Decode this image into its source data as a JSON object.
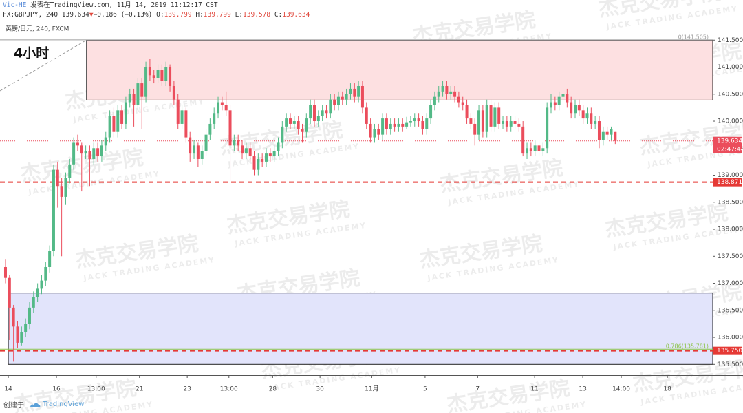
{
  "header": {
    "author": "Vic-HE",
    "published": "发表在TradingView.com, 11月 14, 2019 11:12:17 CST",
    "symbol": "FX:GBPJPY, 240 139.634",
    "arrow": "▼",
    "change": "−0.186 (−0.13%)",
    "ohlc_labels": [
      "O:",
      "H:",
      "L:",
      "C:"
    ],
    "ohlc_values": [
      "139.799",
      "139.799",
      "139.578",
      "139.634"
    ]
  },
  "chart_data": {
    "type": "candlestick",
    "pane_label": "英镑/日元, 240, FXCM",
    "annotation": "4小时",
    "up_color": "#53b987",
    "down_color": "#eb4d5c",
    "ohlc": [
      [
        137.3,
        137.45,
        137.0,
        137.1
      ],
      [
        137.1,
        137.15,
        135.95,
        136.55
      ],
      [
        136.55,
        136.6,
        135.55,
        136.2
      ],
      [
        136.2,
        136.3,
        135.8,
        135.9
      ],
      [
        135.9,
        136.2,
        135.85,
        136.1
      ],
      [
        136.1,
        136.35,
        136.0,
        136.25
      ],
      [
        136.25,
        136.65,
        136.15,
        136.55
      ],
      [
        136.55,
        136.85,
        136.45,
        136.75
      ],
      [
        136.75,
        137.0,
        136.65,
        136.9
      ],
      [
        136.9,
        137.15,
        136.8,
        137.05
      ],
      [
        137.05,
        137.4,
        136.95,
        137.3
      ],
      [
        137.3,
        137.7,
        137.2,
        137.6
      ],
      [
        137.6,
        139.2,
        137.5,
        139.1
      ],
      [
        139.1,
        139.25,
        138.4,
        138.8
      ],
      [
        138.8,
        138.95,
        137.5,
        138.6
      ],
      [
        138.6,
        139.05,
        138.45,
        138.95
      ],
      [
        138.95,
        139.3,
        138.85,
        139.2
      ],
      [
        139.2,
        139.7,
        139.1,
        139.6
      ],
      [
        139.6,
        139.75,
        139.45,
        139.55
      ],
      [
        139.55,
        139.6,
        138.7,
        139.4
      ],
      [
        139.4,
        139.55,
        139.3,
        139.45
      ],
      [
        139.45,
        139.55,
        138.8,
        139.3
      ],
      [
        139.3,
        139.6,
        139.2,
        139.5
      ],
      [
        139.5,
        139.6,
        139.25,
        139.35
      ],
      [
        139.35,
        139.65,
        139.25,
        139.55
      ],
      [
        139.55,
        139.8,
        139.45,
        139.7
      ],
      [
        139.7,
        140.2,
        139.6,
        140.1
      ],
      [
        140.1,
        140.25,
        139.7,
        139.8
      ],
      [
        139.8,
        140.3,
        139.7,
        140.2
      ],
      [
        140.2,
        140.3,
        139.85,
        139.95
      ],
      [
        139.95,
        140.45,
        139.85,
        140.35
      ],
      [
        140.35,
        140.6,
        140.25,
        140.5
      ],
      [
        140.5,
        140.6,
        139.9,
        140.3
      ],
      [
        140.3,
        140.8,
        140.2,
        140.7
      ],
      [
        140.7,
        140.8,
        139.85,
        140.45
      ],
      [
        140.45,
        141.1,
        140.35,
        141.0
      ],
      [
        141.0,
        141.15,
        140.75,
        140.85
      ],
      [
        140.85,
        140.95,
        140.7,
        140.8
      ],
      [
        140.8,
        141.05,
        140.7,
        140.95
      ],
      [
        140.95,
        141.05,
        140.65,
        140.75
      ],
      [
        140.75,
        141.1,
        140.65,
        141.0
      ],
      [
        141.0,
        141.05,
        140.55,
        140.65
      ],
      [
        140.65,
        140.75,
        140.3,
        140.4
      ],
      [
        140.4,
        140.5,
        139.85,
        139.95
      ],
      [
        139.95,
        140.3,
        139.85,
        140.2
      ],
      [
        140.2,
        140.25,
        139.6,
        139.7
      ],
      [
        139.7,
        139.8,
        139.25,
        139.4
      ],
      [
        139.4,
        139.65,
        139.3,
        139.55
      ],
      [
        139.55,
        139.6,
        139.15,
        139.3
      ],
      [
        139.3,
        139.55,
        139.2,
        139.45
      ],
      [
        139.45,
        139.85,
        139.35,
        139.75
      ],
      [
        139.75,
        140.05,
        139.65,
        139.95
      ],
      [
        139.95,
        140.25,
        139.85,
        140.15
      ],
      [
        140.15,
        140.45,
        140.05,
        140.35
      ],
      [
        140.35,
        140.45,
        140.2,
        140.3
      ],
      [
        140.3,
        140.55,
        140.1,
        140.2
      ],
      [
        140.2,
        140.3,
        138.9,
        139.55
      ],
      [
        139.55,
        139.75,
        139.45,
        139.65
      ],
      [
        139.65,
        139.75,
        139.45,
        139.55
      ],
      [
        139.55,
        139.65,
        139.3,
        139.4
      ],
      [
        139.4,
        139.6,
        139.3,
        139.5
      ],
      [
        139.5,
        139.6,
        139.25,
        139.35
      ],
      [
        139.35,
        139.45,
        139.0,
        139.1
      ],
      [
        139.1,
        139.4,
        139.0,
        139.3
      ],
      [
        139.3,
        139.4,
        139.15,
        139.25
      ],
      [
        139.25,
        139.5,
        139.15,
        139.4
      ],
      [
        139.4,
        139.5,
        139.25,
        139.35
      ],
      [
        139.35,
        139.55,
        139.25,
        139.45
      ],
      [
        139.45,
        139.7,
        139.35,
        139.6
      ],
      [
        139.6,
        140.0,
        139.5,
        139.9
      ],
      [
        139.9,
        140.15,
        139.8,
        140.05
      ],
      [
        140.05,
        140.15,
        139.85,
        139.95
      ],
      [
        139.95,
        140.1,
        139.85,
        140.0
      ],
      [
        140.0,
        140.1,
        139.75,
        139.85
      ],
      [
        139.85,
        139.95,
        139.6,
        139.8
      ],
      [
        139.8,
        140.15,
        139.7,
        140.05
      ],
      [
        140.05,
        140.4,
        139.95,
        140.3
      ],
      [
        140.3,
        140.4,
        139.9,
        140.0
      ],
      [
        140.0,
        140.2,
        139.9,
        140.1
      ],
      [
        140.1,
        140.3,
        140.0,
        140.2
      ],
      [
        140.2,
        140.3,
        140.05,
        140.15
      ],
      [
        140.15,
        140.5,
        140.05,
        140.4
      ],
      [
        140.4,
        140.5,
        140.2,
        140.3
      ],
      [
        140.3,
        140.55,
        140.2,
        140.45
      ],
      [
        140.45,
        140.55,
        140.3,
        140.4
      ],
      [
        140.4,
        140.6,
        140.3,
        140.5
      ],
      [
        140.5,
        140.7,
        140.4,
        140.6
      ],
      [
        140.6,
        140.7,
        140.35,
        140.45
      ],
      [
        140.45,
        140.75,
        140.35,
        140.65
      ],
      [
        140.65,
        140.75,
        140.15,
        140.25
      ],
      [
        140.25,
        140.35,
        139.85,
        139.95
      ],
      [
        139.95,
        140.05,
        139.6,
        139.7
      ],
      [
        139.7,
        139.95,
        139.6,
        139.85
      ],
      [
        139.85,
        139.95,
        139.65,
        139.75
      ],
      [
        139.75,
        140.15,
        139.65,
        140.05
      ],
      [
        140.05,
        140.15,
        139.75,
        139.85
      ],
      [
        139.85,
        140.05,
        139.75,
        139.95
      ],
      [
        139.95,
        140.05,
        139.8,
        139.9
      ],
      [
        139.9,
        140.05,
        139.8,
        139.95
      ],
      [
        139.95,
        140.05,
        139.8,
        139.9
      ],
      [
        139.9,
        140.08,
        139.85,
        139.98
      ],
      [
        139.98,
        140.1,
        139.9,
        140.0
      ],
      [
        140.0,
        140.15,
        139.9,
        140.05
      ],
      [
        140.05,
        140.15,
        139.9,
        140.0
      ],
      [
        140.0,
        140.1,
        139.75,
        139.85
      ],
      [
        139.85,
        140.15,
        139.75,
        140.05
      ],
      [
        140.05,
        140.4,
        139.95,
        140.3
      ],
      [
        140.3,
        140.55,
        140.2,
        140.45
      ],
      [
        140.45,
        140.65,
        140.35,
        140.55
      ],
      [
        140.55,
        140.75,
        140.45,
        140.65
      ],
      [
        140.65,
        140.75,
        140.4,
        140.5
      ],
      [
        140.5,
        140.65,
        140.4,
        140.55
      ],
      [
        140.55,
        140.65,
        140.35,
        140.45
      ],
      [
        140.45,
        140.55,
        140.25,
        140.35
      ],
      [
        140.35,
        140.45,
        140.2,
        140.3
      ],
      [
        140.3,
        140.4,
        139.95,
        140.05
      ],
      [
        140.05,
        140.15,
        139.85,
        139.95
      ],
      [
        139.95,
        140.05,
        139.55,
        139.75
      ],
      [
        139.75,
        140.3,
        139.65,
        140.2
      ],
      [
        140.2,
        140.3,
        139.7,
        139.8
      ],
      [
        139.8,
        140.4,
        139.7,
        140.3
      ],
      [
        140.3,
        140.4,
        139.8,
        139.9
      ],
      [
        139.9,
        140.35,
        139.8,
        140.25
      ],
      [
        140.25,
        140.35,
        139.85,
        139.95
      ],
      [
        139.95,
        140.1,
        139.85,
        140.0
      ],
      [
        140.0,
        140.1,
        139.8,
        139.9
      ],
      [
        139.9,
        140.1,
        139.8,
        140.0
      ],
      [
        140.0,
        140.1,
        139.85,
        139.95
      ],
      [
        139.95,
        140.05,
        139.8,
        139.9
      ],
      [
        139.9,
        140.0,
        139.35,
        139.4
      ],
      [
        139.4,
        139.6,
        139.3,
        139.5
      ],
      [
        139.5,
        139.6,
        139.35,
        139.45
      ],
      [
        139.45,
        139.65,
        139.35,
        139.55
      ],
      [
        139.55,
        139.65,
        139.35,
        139.45
      ],
      [
        139.45,
        139.6,
        139.35,
        139.5
      ],
      [
        139.5,
        140.35,
        139.4,
        140.25
      ],
      [
        140.25,
        140.5,
        140.15,
        140.35
      ],
      [
        140.35,
        140.45,
        140.2,
        140.3
      ],
      [
        140.3,
        140.55,
        140.2,
        140.45
      ],
      [
        140.45,
        140.6,
        140.35,
        140.5
      ],
      [
        140.5,
        140.6,
        140.25,
        140.35
      ],
      [
        140.35,
        140.45,
        140.05,
        140.15
      ],
      [
        140.15,
        140.4,
        140.05,
        140.3
      ],
      [
        140.3,
        140.4,
        140.1,
        140.2
      ],
      [
        140.2,
        140.3,
        139.95,
        140.05
      ],
      [
        140.05,
        140.25,
        139.95,
        140.15
      ],
      [
        140.15,
        140.25,
        139.85,
        139.95
      ],
      [
        139.95,
        140.1,
        139.85,
        140.0
      ],
      [
        140.0,
        140.1,
        139.5,
        139.65
      ],
      [
        139.65,
        139.9,
        139.55,
        139.8
      ],
      [
        139.8,
        139.9,
        139.65,
        139.75
      ],
      [
        139.75,
        139.9,
        139.65,
        139.85
      ],
      [
        139.799,
        139.799,
        139.578,
        139.634
      ]
    ],
    "xlim": [
      -1.37,
      176.3
    ],
    "xticks": [
      {
        "value": 0.7,
        "label": "14"
      },
      {
        "value": 12.7,
        "label": "16"
      },
      {
        "value": 22.6,
        "label": "13:00"
      },
      {
        "value": 33.4,
        "label": "21"
      },
      {
        "value": 45.3,
        "label": "23"
      },
      {
        "value": 55.7,
        "label": "13:00"
      },
      {
        "value": 66.6,
        "label": "28"
      },
      {
        "value": 78.4,
        "label": "30"
      },
      {
        "value": 91.3,
        "label": "11月"
      },
      {
        "value": 104.6,
        "label": "5"
      },
      {
        "value": 117.7,
        "label": "7"
      },
      {
        "value": 131.9,
        "label": "11"
      },
      {
        "value": 143.9,
        "label": "13"
      },
      {
        "value": 153.5,
        "label": "14:00"
      },
      {
        "value": 165.0,
        "label": "18"
      }
    ],
    "ylim": [
      135.3,
      141.86
    ],
    "yticks": [
      {
        "value": 135.5,
        "label": "135.500"
      },
      {
        "value": 136.0,
        "label": "136.000"
      },
      {
        "value": 136.5,
        "label": "136.500"
      },
      {
        "value": 137.0,
        "label": "137.000"
      },
      {
        "value": 137.5,
        "label": "137.500"
      },
      {
        "value": 138.0,
        "label": "138.000"
      },
      {
        "value": 138.5,
        "label": "138.500"
      },
      {
        "value": 139.0,
        "label": "139.000"
      },
      {
        "value": 139.5,
        "label": "139.500"
      },
      {
        "value": 140.0,
        "label": "140.000"
      },
      {
        "value": 140.5,
        "label": "140.500"
      },
      {
        "value": 141.0,
        "label": "141.000"
      },
      {
        "value": 141.5,
        "label": "141.500"
      }
    ],
    "zones": [
      {
        "from": 140.39,
        "to": 141.5,
        "x0": 20.2,
        "color": "#fde0e1"
      },
      {
        "from": 135.5,
        "to": 136.82,
        "x0": 0.7,
        "color": "#e2e4fb"
      }
    ],
    "fib": [
      {
        "value": 141.505,
        "label": "0(141.505)",
        "color": "#9e9e9e"
      },
      {
        "value": 135.781,
        "label": "0.786(135.781)",
        "color": "#8bc34a"
      }
    ],
    "levels": [
      {
        "value": 138.871,
        "label": "138.871",
        "color": "#e53935"
      },
      {
        "value": 135.75,
        "label": "135.750",
        "color": "#e53935"
      }
    ],
    "last_price": {
      "value": 139.634,
      "label": "139.634",
      "countdown": "02:47:44",
      "color": "#eb4d5c"
    }
  },
  "watermark": {
    "cn": "杰克交易学院",
    "en": "JACK TRADING ACADEMY"
  },
  "footer": {
    "created": "创建于",
    "brand": "TradingView"
  }
}
